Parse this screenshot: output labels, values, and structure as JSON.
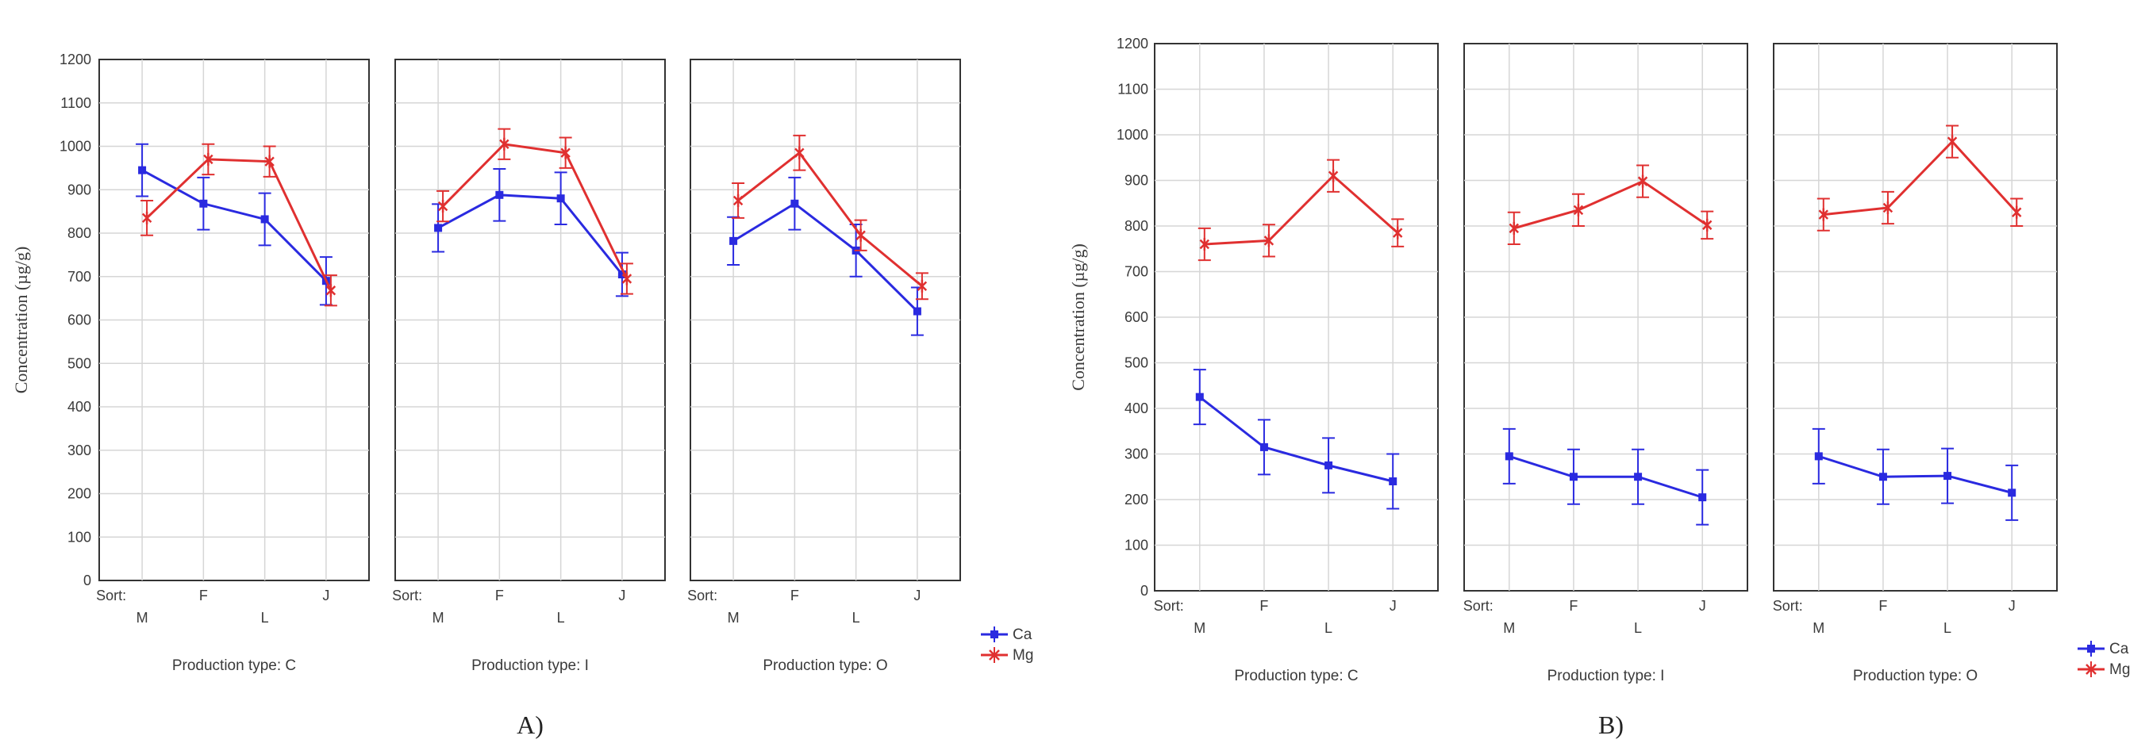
{
  "chart_data": [
    {
      "type": "line",
      "caption": "A)",
      "ylabel": "Concentration (µg/g)",
      "ylim": [
        0,
        1200
      ],
      "yticks": [
        0,
        100,
        200,
        300,
        400,
        500,
        600,
        700,
        800,
        900,
        1000,
        1100,
        1200
      ],
      "grid": true,
      "sort_label": "Sort:",
      "categories": [
        "M",
        "F",
        "L",
        "J"
      ],
      "legend": [
        {
          "name": "Ca",
          "color": "#2a2ae0"
        },
        {
          "name": "Mg",
          "color": "#e03030"
        }
      ],
      "panels": [
        {
          "label": "Production type: C",
          "series": [
            {
              "name": "Ca",
              "values": [
                945,
                868,
                832,
                690
              ],
              "err": [
                60,
                60,
                60,
                55
              ]
            },
            {
              "name": "Mg",
              "values": [
                835,
                970,
                965,
                668
              ],
              "err": [
                40,
                35,
                35,
                35
              ]
            }
          ]
        },
        {
          "label": "Production type: I",
          "series": [
            {
              "name": "Ca",
              "values": [
                812,
                888,
                880,
                705
              ],
              "err": [
                55,
                60,
                60,
                50
              ]
            },
            {
              "name": "Mg",
              "values": [
                862,
                1005,
                985,
                695
              ],
              "err": [
                35,
                35,
                35,
                35
              ]
            }
          ]
        },
        {
          "label": "Production type: O",
          "series": [
            {
              "name": "Ca",
              "values": [
                782,
                868,
                760,
                620
              ],
              "err": [
                55,
                60,
                60,
                55
              ]
            },
            {
              "name": "Mg",
              "values": [
                875,
                985,
                795,
                678
              ],
              "err": [
                40,
                40,
                35,
                30
              ]
            }
          ]
        }
      ]
    },
    {
      "type": "line",
      "caption": "B)",
      "ylabel": "Concentration (µg/g)",
      "ylim": [
        0,
        1200
      ],
      "yticks": [
        0,
        100,
        200,
        300,
        400,
        500,
        600,
        700,
        800,
        900,
        1000,
        1100,
        1200
      ],
      "grid": true,
      "sort_label": "Sort:",
      "categories": [
        "M",
        "F",
        "L",
        "J"
      ],
      "legend": [
        {
          "name": "Ca",
          "color": "#2a2ae0"
        },
        {
          "name": "Mg",
          "color": "#e03030"
        }
      ],
      "panels": [
        {
          "label": "Production type: C",
          "series": [
            {
              "name": "Ca",
              "values": [
                425,
                315,
                275,
                240
              ],
              "err": [
                60,
                60,
                60,
                60
              ]
            },
            {
              "name": "Mg",
              "values": [
                760,
                768,
                910,
                785
              ],
              "err": [
                35,
                35,
                35,
                30
              ]
            }
          ]
        },
        {
          "label": "Production type: I",
          "series": [
            {
              "name": "Ca",
              "values": [
                295,
                250,
                250,
                205
              ],
              "err": [
                60,
                60,
                60,
                60
              ]
            },
            {
              "name": "Mg",
              "values": [
                795,
                835,
                898,
                802
              ],
              "err": [
                35,
                35,
                35,
                30
              ]
            }
          ]
        },
        {
          "label": "Production type: O",
          "series": [
            {
              "name": "Ca",
              "values": [
                295,
                250,
                252,
                215
              ],
              "err": [
                60,
                60,
                60,
                60
              ]
            },
            {
              "name": "Mg",
              "values": [
                825,
                840,
                985,
                830
              ],
              "err": [
                35,
                35,
                35,
                30
              ]
            }
          ]
        }
      ]
    }
  ]
}
